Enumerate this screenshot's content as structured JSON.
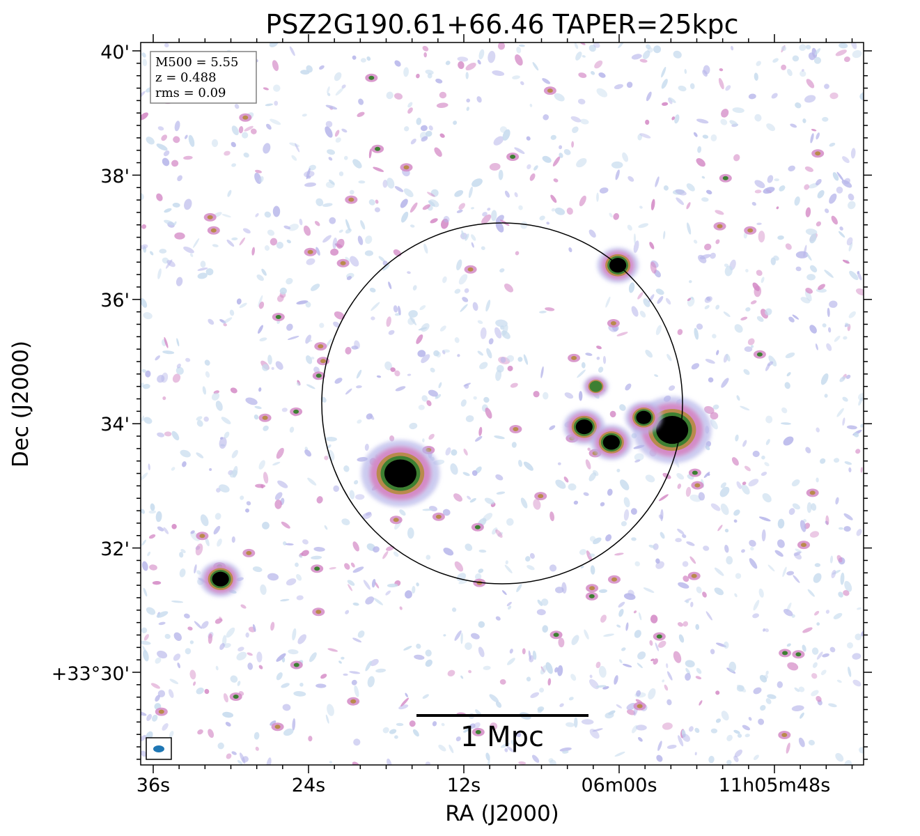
{
  "chart_data": {
    "type": "heatmap",
    "title": "PSZ2G190.61+66.46 TAPER=25kpc",
    "xlabel": "RA (J2000)",
    "ylabel": "Dec (J2000)",
    "x_ticks": [
      "36s",
      "24s",
      "12s",
      "06m00s",
      "11h05m48s"
    ],
    "y_ticks": [
      "+33°30'",
      "32'",
      "34'",
      "36'",
      "38'",
      "40'"
    ],
    "info_box": [
      "M500 = 5.55",
      "z = 0.488",
      "rms = 0.09"
    ],
    "scalebar_label": "1 Mpc",
    "grid": false,
    "colormap": "cubehelix-like (white → light blue → violet → pink → green → black)",
    "colors": {
      "faint": "#c8dcee",
      "low": "#b7b6ea",
      "mid": "#d48ac6",
      "high": "#b98a4c",
      "higher": "#3d7f32",
      "peak": "#000000",
      "beam": "#1f77b4",
      "circle": "#000000"
    },
    "sources": [
      {
        "name": "compact source west of circle (lower left)",
        "ra_s": 30.8,
        "dec_arcmin": 31.5,
        "level": 1.0
      },
      {
        "name": "extended source inside circle (left)",
        "ra_s": 16.9,
        "dec_arcmin": 33.2,
        "level": 1.0
      },
      {
        "name": "compact source top of circle",
        "ra_s": 0.1,
        "dec_arcmin": 36.55,
        "level": 1.0
      },
      {
        "name": "source near center-right",
        "ra_s": 2.7,
        "dec_arcmin": 33.95,
        "level": 1.0
      },
      {
        "name": "bright source right of center",
        "ra_s": 0.6,
        "dec_arcmin": 33.7,
        "level": 1.0
      },
      {
        "name": "diffuse emission on circle edge",
        "ra_s": 55.9,
        "dec_arcmin": 33.9,
        "level": 0.95
      },
      {
        "name": "small source edge right",
        "ra_s": 58.1,
        "dec_arcmin": 34.1,
        "level": 0.9
      },
      {
        "name": "faint source above center",
        "ra_s": 1.8,
        "dec_arcmin": 34.6,
        "level": 0.6
      }
    ]
  }
}
